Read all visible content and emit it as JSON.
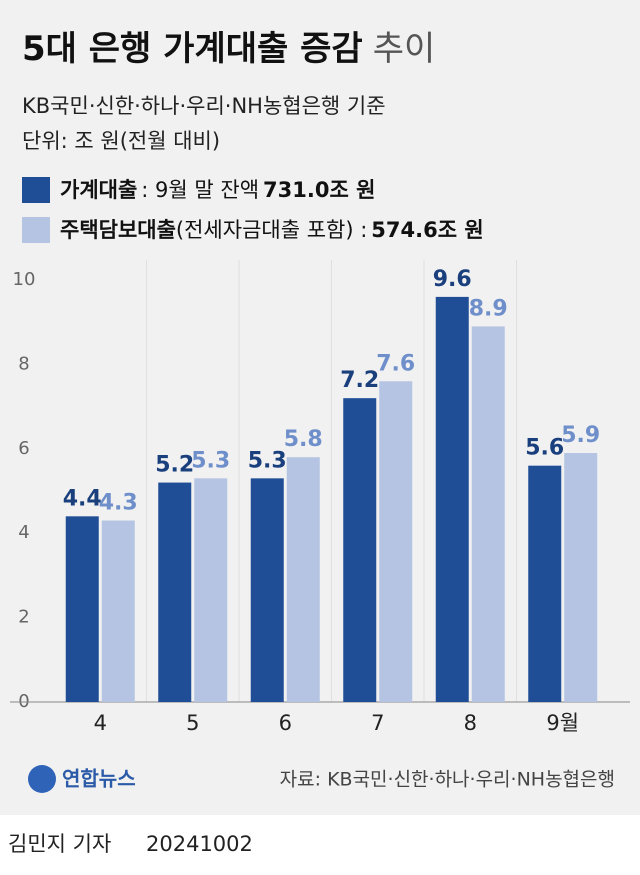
{
  "chart_data": {
    "type": "bar",
    "title": "5대 은행 가계대출 증감",
    "title_light": "추이",
    "subtitle": "KB국민·신한·하나·우리·NH농협은행 기준",
    "unit": "단위: 조 원(전월 대비)",
    "categories": [
      "4",
      "5",
      "6",
      "7",
      "8",
      "9월"
    ],
    "series": [
      {
        "name": "가계대출",
        "legend_note": ": 9월 말 잔액",
        "balance": "731.0조 원",
        "color": "#1f4e96",
        "label_color": "#1a3f7d",
        "values": [
          4.4,
          5.2,
          5.3,
          7.2,
          9.6,
          5.6
        ]
      },
      {
        "name": "주택담보대출",
        "legend_note": "(전세자금대출 포함) :",
        "balance": "574.6조 원",
        "color": "#b4c4e2",
        "label_color": "#6f8fcb",
        "values": [
          4.3,
          5.3,
          5.8,
          7.6,
          8.9,
          5.9
        ]
      }
    ],
    "ylim": [
      0,
      10
    ],
    "yticks": [
      0,
      2,
      4,
      6,
      8,
      10
    ],
    "grid": false,
    "logo": "연합뉴스",
    "source": "자료: KB국민·신한·하나·우리·NH농협은행",
    "byline": "김민지 기자",
    "date": "20241002"
  }
}
